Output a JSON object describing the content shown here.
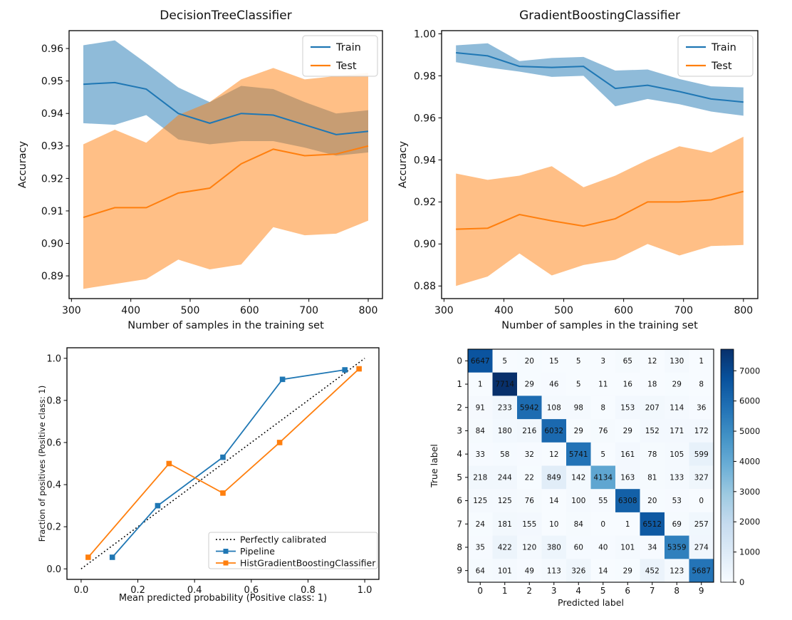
{
  "figure": {
    "background": "#ffffff"
  },
  "colors": {
    "train": "#1f77b4",
    "test": "#ff7f0e",
    "train_band": "rgba(31,119,180,0.5)",
    "test_band": "rgba(255,127,14,0.5)",
    "heatmap_dark": "#08306b",
    "heatmap_light": "#f7fbff"
  },
  "chart_data": [
    {
      "id": "learning-curve-decision-tree",
      "type": "line",
      "title": "DecisionTreeClassifier",
      "xlabel": "Number of samples in the training set",
      "ylabel": "Accuracy",
      "xlim": [
        296,
        824
      ],
      "ylim": [
        0.883,
        0.9655
      ],
      "xticks": [
        300,
        400,
        500,
        600,
        700,
        800
      ],
      "xtick_labels": [
        "300",
        "400",
        "500",
        "600",
        "700",
        "800"
      ],
      "yticks": [
        0.89,
        0.9,
        0.91,
        0.92,
        0.93,
        0.94,
        0.95,
        0.96
      ],
      "ytick_labels": [
        "0.89",
        "0.90",
        "0.91",
        "0.92",
        "0.93",
        "0.94",
        "0.95",
        "0.96"
      ],
      "x": [
        320,
        373,
        426,
        480,
        533,
        586,
        640,
        693,
        746,
        800
      ],
      "series": [
        {
          "name": "Train",
          "color": "#1f77b4",
          "band_color": "rgba(31,119,180,0.5)",
          "values": [
            0.949,
            0.9495,
            0.9475,
            0.94,
            0.937,
            0.94,
            0.9395,
            0.9365,
            0.9335,
            0.9345
          ],
          "band_upper": [
            0.961,
            0.9625,
            0.9555,
            0.948,
            0.9435,
            0.9485,
            0.9475,
            0.9435,
            0.94,
            0.941
          ],
          "band_lower": [
            0.937,
            0.9365,
            0.9395,
            0.932,
            0.9305,
            0.9315,
            0.9315,
            0.9295,
            0.927,
            0.928
          ]
        },
        {
          "name": "Test",
          "color": "#ff7f0e",
          "band_color": "rgba(255,127,14,0.5)",
          "values": [
            0.908,
            0.911,
            0.911,
            0.9155,
            0.917,
            0.9245,
            0.929,
            0.927,
            0.9275,
            0.93
          ],
          "band_upper": [
            0.9305,
            0.935,
            0.931,
            0.9395,
            0.9435,
            0.9505,
            0.954,
            0.9505,
            0.9515,
            0.9525
          ],
          "band_lower": [
            0.886,
            0.8875,
            0.889,
            0.895,
            0.892,
            0.8935,
            0.905,
            0.9025,
            0.903,
            0.907
          ]
        }
      ],
      "legend": {
        "position": "upper right",
        "entries": [
          "Train",
          "Test"
        ]
      }
    },
    {
      "id": "learning-curve-gradient-boosting",
      "type": "line",
      "title": "GradientBoostingClassifier",
      "xlabel": "Number of samples in the training set",
      "ylabel": "Accuracy",
      "xlim": [
        296,
        824
      ],
      "ylim": [
        0.874,
        1.0015
      ],
      "xticks": [
        300,
        400,
        500,
        600,
        700,
        800
      ],
      "xtick_labels": [
        "300",
        "400",
        "500",
        "600",
        "700",
        "800"
      ],
      "yticks": [
        0.88,
        0.9,
        0.92,
        0.94,
        0.96,
        0.98,
        1.0
      ],
      "ytick_labels": [
        "0.88",
        "0.90",
        "0.92",
        "0.94",
        "0.96",
        "0.98",
        "1.00"
      ],
      "x": [
        320,
        373,
        426,
        480,
        533,
        586,
        640,
        693,
        746,
        800
      ],
      "series": [
        {
          "name": "Train",
          "color": "#1f77b4",
          "band_color": "rgba(31,119,180,0.5)",
          "values": [
            0.991,
            0.9895,
            0.9845,
            0.984,
            0.9845,
            0.974,
            0.9755,
            0.9725,
            0.969,
            0.9675
          ],
          "band_upper": [
            0.9945,
            0.9955,
            0.987,
            0.9885,
            0.989,
            0.9825,
            0.983,
            0.9785,
            0.975,
            0.9745
          ],
          "band_lower": [
            0.9865,
            0.984,
            0.982,
            0.9795,
            0.98,
            0.9655,
            0.969,
            0.9665,
            0.963,
            0.961
          ]
        },
        {
          "name": "Test",
          "color": "#ff7f0e",
          "band_color": "rgba(255,127,14,0.5)",
          "values": [
            0.907,
            0.9075,
            0.914,
            0.911,
            0.9085,
            0.912,
            0.92,
            0.92,
            0.921,
            0.925
          ],
          "band_upper": [
            0.9335,
            0.9305,
            0.9325,
            0.937,
            0.927,
            0.9325,
            0.94,
            0.9465,
            0.9435,
            0.951
          ],
          "band_lower": [
            0.88,
            0.8845,
            0.8955,
            0.885,
            0.89,
            0.8925,
            0.9,
            0.8945,
            0.899,
            0.8995
          ]
        }
      ],
      "legend": {
        "position": "upper right",
        "entries": [
          "Train",
          "Test"
        ]
      }
    },
    {
      "id": "calibration-curve",
      "type": "line",
      "title": "",
      "xlabel": "Mean predicted probability (Positive class: 1)",
      "ylabel": "Fraction of positives (Positive class: 1)",
      "xlim": [
        -0.05,
        1.05
      ],
      "ylim": [
        -0.05,
        1.05
      ],
      "xticks": [
        0.0,
        0.2,
        0.4,
        0.6,
        0.8,
        1.0
      ],
      "xtick_labels": [
        "0.0",
        "0.2",
        "0.4",
        "0.6",
        "0.8",
        "1.0"
      ],
      "yticks": [
        0.0,
        0.2,
        0.4,
        0.6,
        0.8,
        1.0
      ],
      "ytick_labels": [
        "0.0",
        "0.2",
        "0.4",
        "0.6",
        "0.8",
        "1.0"
      ],
      "ref_line": {
        "name": "Perfectly calibrated",
        "color": "#000000",
        "style": "dotted",
        "x": [
          0,
          1
        ],
        "y": [
          0,
          1
        ]
      },
      "series": [
        {
          "name": "Pipeline",
          "color": "#1f77b4",
          "marker": "square",
          "x": [
            0.11,
            0.27,
            0.5,
            0.71,
            0.93
          ],
          "y": [
            0.055,
            0.3,
            0.53,
            0.9,
            0.945
          ]
        },
        {
          "name": "HistGradientBoostingClassifier",
          "color": "#ff7f0e",
          "marker": "square",
          "x": [
            0.025,
            0.31,
            0.5,
            0.7,
            0.98
          ],
          "y": [
            0.055,
            0.5,
            0.36,
            0.6,
            0.95
          ]
        }
      ],
      "legend": {
        "position": "lower right",
        "entries": [
          "Perfectly calibrated",
          "Pipeline",
          "HistGradientBoostingClassifier"
        ]
      }
    },
    {
      "id": "confusion-matrix",
      "type": "heatmap",
      "title": "",
      "xlabel": "Predicted label",
      "ylabel": "True label",
      "class_labels": [
        "0",
        "1",
        "2",
        "3",
        "4",
        "5",
        "6",
        "7",
        "8",
        "9"
      ],
      "matrix": [
        [
          6647,
          5,
          20,
          15,
          5,
          3,
          65,
          12,
          130,
          1
        ],
        [
          1,
          7714,
          29,
          46,
          5,
          11,
          16,
          18,
          29,
          8
        ],
        [
          91,
          233,
          5942,
          108,
          98,
          8,
          153,
          207,
          114,
          36
        ],
        [
          84,
          180,
          216,
          6032,
          29,
          76,
          29,
          152,
          171,
          172
        ],
        [
          33,
          58,
          32,
          12,
          5741,
          5,
          161,
          78,
          105,
          599
        ],
        [
          218,
          244,
          22,
          849,
          142,
          4134,
          163,
          81,
          133,
          327
        ],
        [
          125,
          125,
          76,
          14,
          100,
          55,
          6308,
          20,
          53,
          0
        ],
        [
          24,
          181,
          155,
          10,
          84,
          0,
          1,
          6512,
          69,
          257
        ],
        [
          35,
          422,
          120,
          380,
          60,
          40,
          101,
          34,
          5359,
          274
        ],
        [
          64,
          101,
          49,
          113,
          326,
          14,
          29,
          452,
          123,
          5687
        ]
      ],
      "vmin": 0,
      "vmax": 7714,
      "colormap": "Blues",
      "colorbar_ticks": [
        0,
        1000,
        2000,
        3000,
        4000,
        5000,
        6000,
        7000
      ],
      "colorbar_tick_labels": [
        "0",
        "1000",
        "2000",
        "3000",
        "4000",
        "5000",
        "6000",
        "7000"
      ]
    }
  ]
}
